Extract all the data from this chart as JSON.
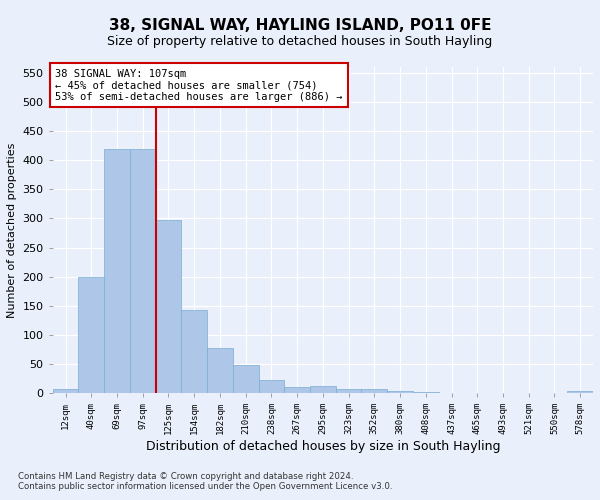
{
  "title": "38, SIGNAL WAY, HAYLING ISLAND, PO11 0FE",
  "subtitle": "Size of property relative to detached houses in South Hayling",
  "xlabel": "Distribution of detached houses by size in South Hayling",
  "ylabel": "Number of detached properties",
  "footnote1": "Contains HM Land Registry data © Crown copyright and database right 2024.",
  "footnote2": "Contains public sector information licensed under the Open Government Licence v3.0.",
  "annotation_line1": "38 SIGNAL WAY: 107sqm",
  "annotation_line2": "← 45% of detached houses are smaller (754)",
  "annotation_line3": "53% of semi-detached houses are larger (886) →",
  "bar_color": "#aec6e8",
  "bar_edge_color": "#7aadd4",
  "vline_color": "#cc0000",
  "vline_x": 3.5,
  "background_color": "#eaf0fb",
  "categories": [
    "12sqm",
    "40sqm",
    "69sqm",
    "97sqm",
    "125sqm",
    "154sqm",
    "182sqm",
    "210sqm",
    "238sqm",
    "267sqm",
    "295sqm",
    "323sqm",
    "352sqm",
    "380sqm",
    "408sqm",
    "437sqm",
    "465sqm",
    "493sqm",
    "521sqm",
    "550sqm",
    "578sqm"
  ],
  "values": [
    8,
    200,
    420,
    420,
    298,
    142,
    77,
    48,
    23,
    10,
    12,
    8,
    8,
    3,
    2,
    1,
    1,
    0,
    0,
    0,
    3
  ],
  "ylim": [
    0,
    560
  ],
  "yticks": [
    0,
    50,
    100,
    150,
    200,
    250,
    300,
    350,
    400,
    450,
    500,
    550
  ],
  "annotation_box_edge": "#cc0000",
  "title_fontsize": 11,
  "subtitle_fontsize": 9
}
